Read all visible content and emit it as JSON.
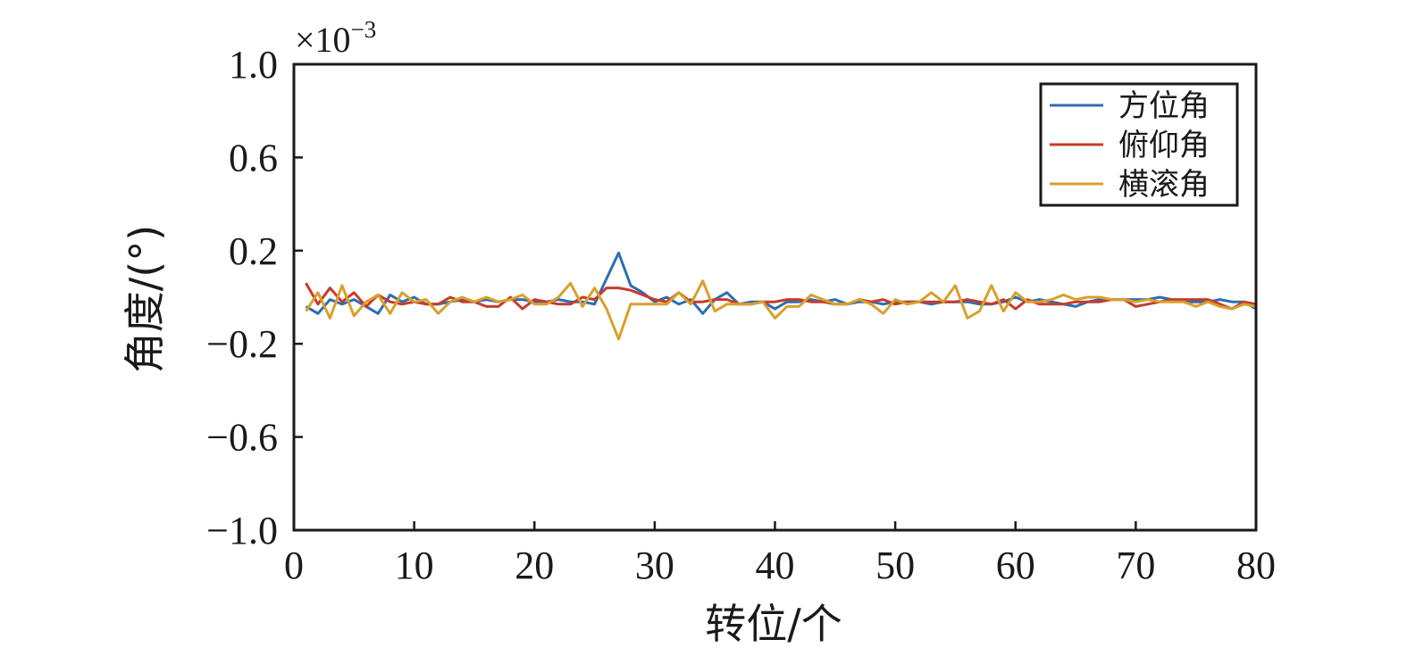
{
  "chart_data": {
    "type": "line",
    "xlabel": "转位/个",
    "ylabel": "角度/(°)",
    "multiplier": {
      "base": "×10",
      "exponent": "−3"
    },
    "xlim": [
      0,
      80
    ],
    "ylim": [
      -1.0,
      1.0
    ],
    "x_ticks": [
      0,
      10,
      20,
      30,
      40,
      50,
      60,
      70,
      80
    ],
    "x_tick_labels": [
      "0",
      "10",
      "20",
      "30",
      "40",
      "50",
      "60",
      "70",
      "80"
    ],
    "y_ticks": [
      1.0,
      0.6,
      0.2,
      -0.2,
      -0.6,
      -1.0
    ],
    "y_tick_labels": [
      "1.0",
      "0.6",
      "0.2",
      "−0.2",
      "−0.6",
      "−1.0"
    ],
    "legend_position": "top-right",
    "grid": false,
    "x": [
      1,
      2,
      3,
      4,
      5,
      6,
      7,
      8,
      9,
      10,
      11,
      12,
      13,
      14,
      15,
      16,
      17,
      18,
      19,
      20,
      21,
      22,
      23,
      24,
      25,
      26,
      27,
      28,
      29,
      30,
      31,
      32,
      33,
      34,
      35,
      36,
      37,
      38,
      39,
      40,
      41,
      42,
      43,
      44,
      45,
      46,
      47,
      48,
      49,
      50,
      51,
      52,
      53,
      54,
      55,
      56,
      57,
      58,
      59,
      60,
      61,
      62,
      63,
      64,
      65,
      66,
      67,
      68,
      69,
      70,
      71,
      72,
      73,
      74,
      75,
      76,
      77,
      78,
      79,
      80
    ],
    "series": [
      {
        "name": "方位角",
        "color": "#2e6db4",
        "values": [
          -0.04,
          -0.07,
          -0.01,
          -0.03,
          -0.01,
          -0.04,
          -0.07,
          0.01,
          -0.02,
          0.0,
          -0.03,
          -0.03,
          -0.02,
          -0.01,
          -0.02,
          -0.01,
          -0.02,
          -0.01,
          -0.01,
          -0.02,
          -0.02,
          -0.01,
          -0.02,
          -0.02,
          -0.03,
          0.08,
          0.19,
          0.05,
          0.02,
          -0.02,
          0.0,
          -0.03,
          -0.01,
          -0.07,
          -0.01,
          0.02,
          -0.03,
          -0.02,
          -0.02,
          -0.05,
          -0.02,
          -0.02,
          -0.01,
          -0.02,
          -0.01,
          -0.03,
          -0.02,
          -0.02,
          -0.03,
          -0.02,
          -0.02,
          -0.02,
          -0.03,
          -0.02,
          -0.02,
          -0.02,
          -0.03,
          -0.03,
          -0.02,
          0.0,
          -0.02,
          -0.01,
          -0.02,
          -0.03,
          -0.04,
          -0.02,
          -0.01,
          -0.01,
          -0.01,
          -0.01,
          -0.01,
          0.0,
          -0.01,
          -0.02,
          -0.02,
          -0.02,
          -0.01,
          -0.02,
          -0.02,
          -0.05
        ]
      },
      {
        "name": "俯仰角",
        "color": "#c63c2a",
        "values": [
          0.06,
          -0.03,
          0.04,
          -0.02,
          0.02,
          -0.04,
          0.01,
          -0.02,
          -0.03,
          -0.02,
          -0.03,
          -0.03,
          0.0,
          -0.02,
          -0.02,
          -0.04,
          -0.04,
          0.0,
          -0.05,
          -0.01,
          -0.02,
          -0.03,
          -0.03,
          0.0,
          -0.01,
          0.04,
          0.04,
          0.03,
          0.01,
          -0.01,
          -0.02,
          0.02,
          -0.02,
          -0.02,
          -0.01,
          -0.01,
          -0.03,
          -0.03,
          -0.02,
          -0.02,
          -0.01,
          -0.01,
          -0.02,
          -0.02,
          -0.03,
          -0.03,
          -0.01,
          -0.02,
          -0.01,
          -0.03,
          -0.02,
          -0.02,
          -0.02,
          -0.02,
          -0.02,
          -0.01,
          -0.02,
          -0.03,
          -0.01,
          -0.05,
          -0.01,
          -0.03,
          -0.03,
          -0.03,
          -0.02,
          -0.02,
          -0.02,
          -0.01,
          -0.01,
          -0.04,
          -0.03,
          -0.02,
          -0.01,
          -0.01,
          -0.01,
          -0.01,
          -0.03,
          -0.05,
          -0.02,
          -0.03
        ]
      },
      {
        "name": "横滚角",
        "color": "#d8a02c",
        "values": [
          -0.06,
          0.02,
          -0.09,
          0.05,
          -0.08,
          -0.02,
          0.01,
          -0.07,
          0.02,
          -0.02,
          -0.01,
          -0.07,
          -0.02,
          0.0,
          -0.02,
          0.0,
          -0.02,
          -0.01,
          0.01,
          -0.03,
          -0.03,
          0.0,
          0.06,
          -0.04,
          0.04,
          -0.05,
          -0.18,
          -0.03,
          -0.03,
          -0.03,
          -0.03,
          0.02,
          -0.03,
          0.07,
          -0.06,
          -0.03,
          -0.03,
          -0.03,
          -0.02,
          -0.09,
          -0.04,
          -0.04,
          0.01,
          -0.01,
          -0.03,
          -0.03,
          -0.01,
          -0.03,
          -0.07,
          -0.01,
          -0.03,
          -0.02,
          0.02,
          -0.02,
          0.05,
          -0.09,
          -0.06,
          0.05,
          -0.06,
          0.02,
          -0.02,
          -0.02,
          -0.01,
          0.01,
          -0.01,
          0.0,
          0.0,
          -0.01,
          -0.01,
          -0.02,
          -0.01,
          -0.02,
          -0.02,
          -0.02,
          -0.04,
          -0.02,
          -0.04,
          -0.05,
          -0.03,
          -0.04
        ]
      }
    ]
  }
}
